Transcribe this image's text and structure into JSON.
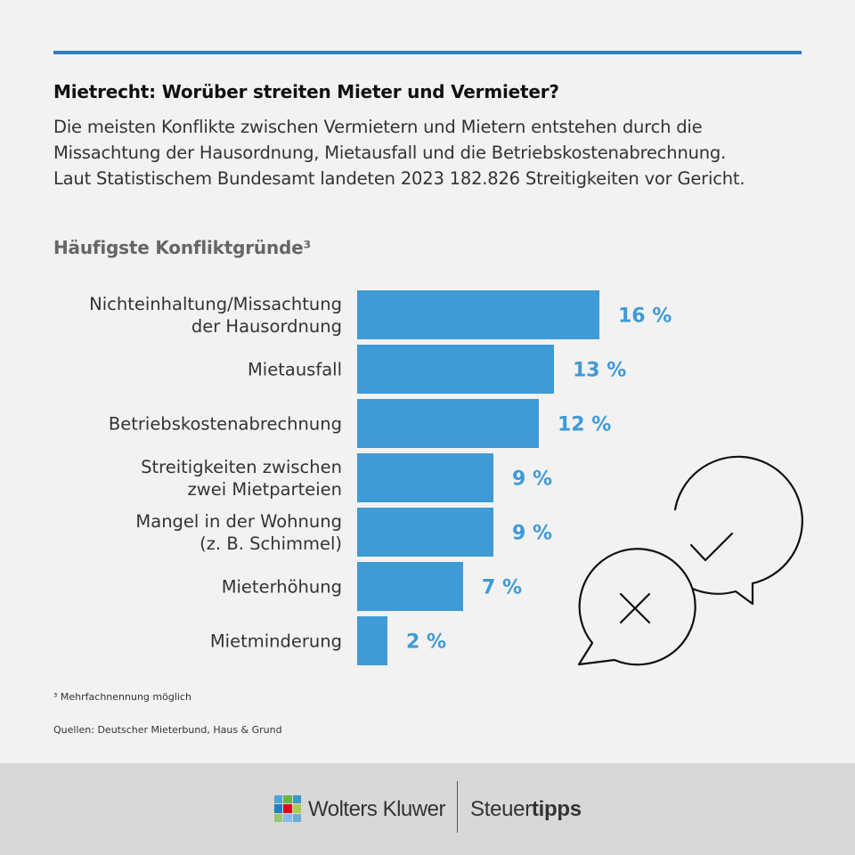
{
  "header": {
    "title": "Mietrecht: Worüber streiten Mieter und Vermieter?",
    "intro": [
      "Die meisten Konflikte zwischen Vermietern und Mietern entstehen durch die",
      "Missachtung der Hausordnung, Mietausfall und die Betriebskostenabrechnung.",
      "Laut Statistischem Bundesamt landeten 2023 182.826 Streitigkeiten vor Gericht."
    ]
  },
  "chart_data": {
    "type": "bar",
    "orientation": "horizontal",
    "title": "Häufigste Konfliktgründe³",
    "categories": [
      [
        "Nichteinhaltung/Missachtung",
        "der Hausordnung"
      ],
      [
        "Mietausfall"
      ],
      [
        "Betriebskostenabrechnung"
      ],
      [
        "Streitigkeiten zwischen",
        "zwei Mietparteien"
      ],
      [
        "Mangel in der Wohnung",
        "(z. B. Schimmel)"
      ],
      [
        "Mieterhöhung"
      ],
      [
        "Mietminderung"
      ]
    ],
    "values": [
      16,
      13,
      12,
      9,
      9,
      7,
      2
    ],
    "value_labels": [
      "16 %",
      "13 %",
      "12 %",
      "9 %",
      "9 %",
      "7 %",
      "2 %"
    ],
    "unit": "%",
    "grid": false,
    "color": "#3f9ad6"
  },
  "footer": {
    "footnote": "³ Mehrfachnennung möglich",
    "sources": "Quellen: Deutscher Mieterbund, Haus & Grund",
    "brand": "Wolters Kluwer",
    "product_regular": "Steuer",
    "product_bold": "tipps"
  },
  "decorations": {
    "speech_bubble_icons": [
      "x-bubble-icon",
      "check-bubble-icon"
    ]
  },
  "colors": {
    "accent": "#3f9ad6",
    "rule": "#2e7ec4",
    "footer_band": "#d8d8d8"
  }
}
